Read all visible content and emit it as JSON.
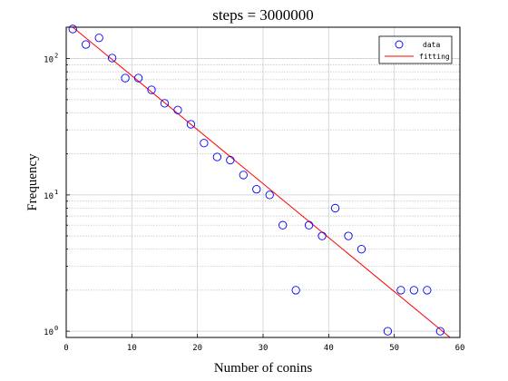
{
  "chart_data": {
    "type": "scatter",
    "title": "steps = 3000000",
    "xlabel": "Number of conins",
    "ylabel": "Frequency",
    "xlim": [
      0,
      60
    ],
    "ylim": [
      0.9,
      170
    ],
    "yscale": "log",
    "grid": true,
    "legend_position": "top-right",
    "x_ticks": [
      0,
      10,
      20,
      30,
      40,
      50,
      60
    ],
    "y_ticks": [
      {
        "value": 1,
        "base": "10",
        "exp": "0"
      },
      {
        "value": 10,
        "base": "10",
        "exp": "1"
      },
      {
        "value": 100,
        "base": "10",
        "exp": "2"
      }
    ],
    "series": [
      {
        "name": "data",
        "kind": "points",
        "color": "#0000ff",
        "x": [
          1,
          3,
          5,
          7,
          9,
          11,
          13,
          15,
          17,
          19,
          21,
          23,
          25,
          27,
          29,
          31,
          33,
          35,
          37,
          39,
          41,
          43,
          45,
          49,
          51,
          53,
          55,
          57
        ],
        "y": [
          165,
          127,
          142,
          101,
          72,
          72,
          59,
          47,
          42,
          33,
          24,
          19,
          18,
          14,
          11,
          10,
          6,
          2,
          6,
          5,
          8,
          5,
          4,
          1,
          2,
          2,
          2,
          1
        ]
      },
      {
        "name": "fitting",
        "kind": "line",
        "color": "#ff0000",
        "x": [
          1,
          58.5
        ],
        "y": [
          170,
          0.9
        ]
      }
    ]
  }
}
